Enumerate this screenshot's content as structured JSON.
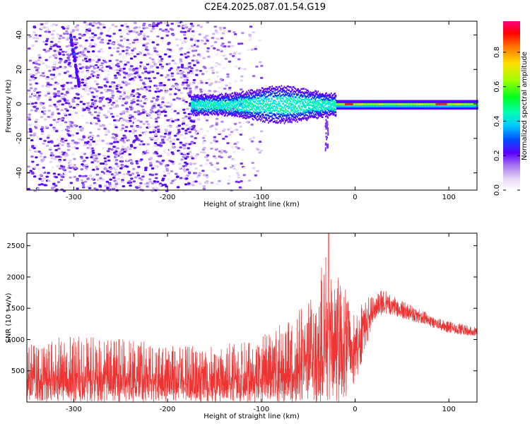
{
  "title": "C2E4.2025.087.01.54.G19",
  "chart_data": [
    {
      "type": "heatmap",
      "xlabel": "Height of straight line (km)",
      "ylabel": "Frequency (Hz)",
      "xlim": [
        -350,
        130
      ],
      "ylim": [
        -50,
        48
      ],
      "xticks": [
        -300,
        -200,
        -100,
        0,
        100
      ],
      "yticks": [
        -40,
        -20,
        0,
        20,
        40
      ],
      "colorbar": {
        "label": "Normalized spectral amplitude",
        "range": [
          0,
          0.98
        ],
        "ticks": [
          0.0,
          0.2,
          0.4,
          0.6,
          0.8
        ]
      },
      "signal_band": {
        "center_hz": 0,
        "halfwidth_hz": 2,
        "x_start": -175,
        "x_end": 130
      },
      "noise_region": {
        "x_start": -350,
        "x_end": -100
      }
    },
    {
      "type": "line",
      "color": "#ee3333",
      "xlabel": "Height of straight line (km)",
      "ylabel": "SNR (10 * v/v)",
      "xlim": [
        -350,
        130
      ],
      "ylim": [
        0,
        2700
      ],
      "xticks": [
        -300,
        -200,
        -100,
        0,
        100
      ],
      "yticks": [
        500,
        1000,
        1500,
        2000,
        2500
      ],
      "envelope": {
        "x": [
          -350,
          -300,
          -250,
          -200,
          -150,
          -100,
          -60,
          -40,
          -30,
          -20,
          -10,
          0,
          10,
          20,
          30,
          40,
          60,
          80,
          100,
          130
        ],
        "center": [
          350,
          380,
          360,
          340,
          330,
          390,
          500,
          700,
          950,
          1000,
          900,
          1000,
          1200,
          1500,
          1600,
          1550,
          1420,
          1300,
          1200,
          1120
        ],
        "upper": [
          750,
          800,
          780,
          700,
          680,
          800,
          1100,
          1500,
          1900,
          1700,
          1500,
          1450,
          1650,
          1750,
          1800,
          1700,
          1550,
          1400,
          1300,
          1200
        ],
        "lower": [
          0,
          0,
          0,
          0,
          0,
          0,
          0,
          0,
          0,
          0,
          0,
          300,
          800,
          1300,
          1420,
          1380,
          1300,
          1200,
          1100,
          1050
        ]
      },
      "peak": {
        "x": -28,
        "y": 2700
      }
    }
  ]
}
